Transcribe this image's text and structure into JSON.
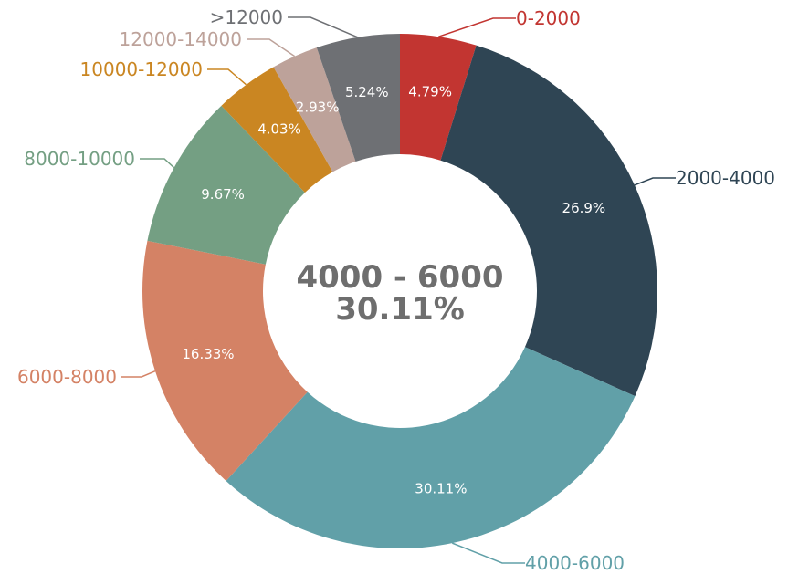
{
  "chart_data": {
    "type": "pie",
    "variant": "donut",
    "categories": [
      "0-2000",
      "2000-4000",
      "4000-6000",
      "6000-8000",
      "8000-10000",
      "10000-12000",
      "12000-14000",
      ">12000"
    ],
    "values": [
      4.79,
      26.9,
      30.11,
      16.33,
      9.67,
      4.03,
      2.93,
      5.24
    ],
    "value_labels": [
      "4.79%",
      "26.9%",
      "30.11%",
      "16.33%",
      "9.67%",
      "4.03%",
      "2.93%",
      "5.24%"
    ],
    "colors": [
      "#c23531",
      "#2f4554",
      "#61a0a8",
      "#d48265",
      "#749f83",
      "#ca8622",
      "#bda29a",
      "#6e7074"
    ],
    "center": {
      "title": "4000 - 6000",
      "value": "30.11%"
    },
    "legend": "none"
  }
}
